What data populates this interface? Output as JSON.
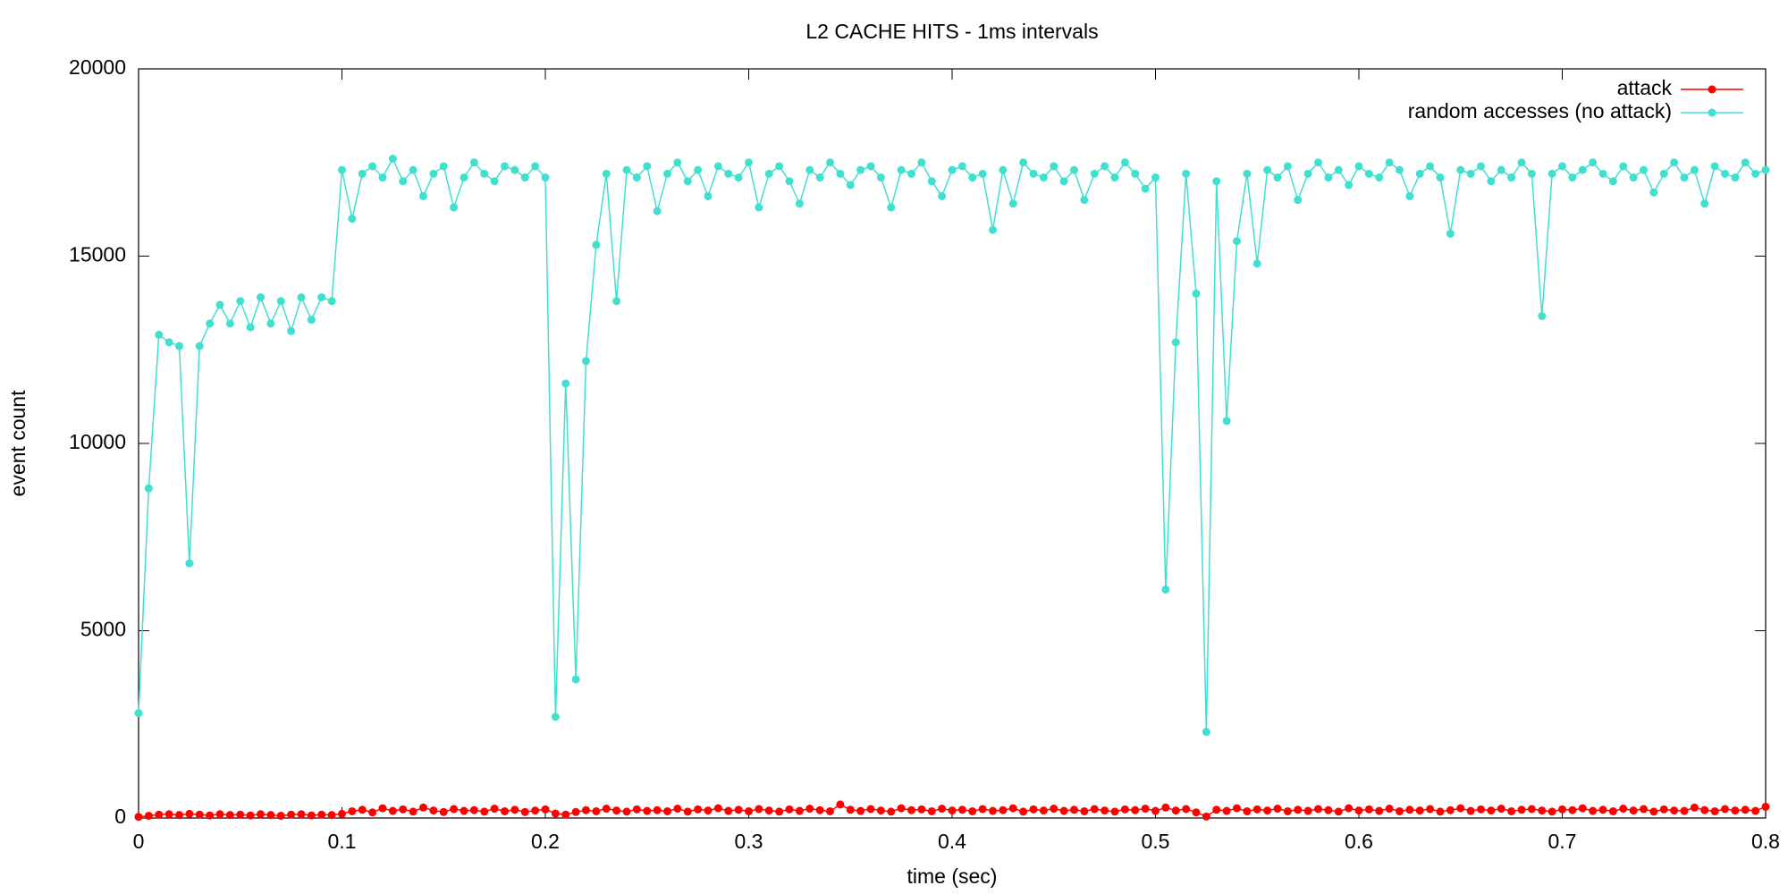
{
  "chart_data": {
    "type": "line",
    "title": "L2 CACHE HITS - 1ms intervals",
    "xlabel": "time (sec)",
    "ylabel": "event count",
    "x": [
      0,
      0.005,
      0.01,
      0.015,
      0.02,
      0.025,
      0.03,
      0.035,
      0.04,
      0.045,
      0.05,
      0.055,
      0.06,
      0.065,
      0.07,
      0.075,
      0.08,
      0.085,
      0.09,
      0.095,
      0.1,
      0.105,
      0.11,
      0.115,
      0.12,
      0.125,
      0.13,
      0.135,
      0.14,
      0.145,
      0.15,
      0.155,
      0.16,
      0.165,
      0.17,
      0.175,
      0.18,
      0.185,
      0.19,
      0.195,
      0.2,
      0.205,
      0.21,
      0.215,
      0.22,
      0.225,
      0.23,
      0.235,
      0.24,
      0.245,
      0.25,
      0.255,
      0.26,
      0.265,
      0.27,
      0.275,
      0.28,
      0.285,
      0.29,
      0.295,
      0.3,
      0.305,
      0.31,
      0.315,
      0.32,
      0.325,
      0.33,
      0.335,
      0.34,
      0.345,
      0.35,
      0.355,
      0.36,
      0.365,
      0.37,
      0.375,
      0.38,
      0.385,
      0.39,
      0.395,
      0.4,
      0.405,
      0.41,
      0.415,
      0.42,
      0.425,
      0.43,
      0.435,
      0.44,
      0.445,
      0.45,
      0.455,
      0.46,
      0.465,
      0.47,
      0.475,
      0.48,
      0.485,
      0.49,
      0.495,
      0.5,
      0.505,
      0.51,
      0.515,
      0.52,
      0.525,
      0.53,
      0.535,
      0.54,
      0.545,
      0.55,
      0.555,
      0.56,
      0.565,
      0.57,
      0.575,
      0.58,
      0.585,
      0.59,
      0.595,
      0.6,
      0.605,
      0.61,
      0.615,
      0.62,
      0.625,
      0.63,
      0.635,
      0.64,
      0.645,
      0.65,
      0.655,
      0.66,
      0.665,
      0.67,
      0.675,
      0.68,
      0.685,
      0.69,
      0.695,
      0.7,
      0.705,
      0.71,
      0.715,
      0.72,
      0.725,
      0.73,
      0.735,
      0.74,
      0.745,
      0.75,
      0.755,
      0.76,
      0.765,
      0.77,
      0.775,
      0.78,
      0.785,
      0.79,
      0.795,
      0.8
    ],
    "series": [
      {
        "name": "attack",
        "color": "#ff0000",
        "values": [
          30,
          60,
          90,
          100,
          80,
          110,
          90,
          70,
          100,
          80,
          90,
          70,
          100,
          80,
          60,
          90,
          100,
          70,
          90,
          80,
          110,
          180,
          220,
          150,
          260,
          190,
          230,
          170,
          280,
          200,
          160,
          240,
          190,
          210,
          170,
          250,
          180,
          220,
          160,
          200,
          230,
          120,
          90,
          160,
          210,
          180,
          250,
          200,
          170,
          230,
          190,
          210,
          180,
          250,
          170,
          230,
          200,
          260,
          190,
          220,
          180,
          240,
          200,
          170,
          230,
          190,
          250,
          210,
          180,
          360,
          220,
          190,
          240,
          200,
          170,
          260,
          210,
          230,
          180,
          250,
          200,
          220,
          180,
          240,
          190,
          210,
          260,
          170,
          230,
          200,
          250,
          190,
          220,
          180,
          240,
          200,
          170,
          230,
          210,
          250,
          190,
          280,
          200,
          240,
          150,
          40,
          220,
          190,
          260,
          180,
          230,
          200,
          250,
          180,
          220,
          190,
          240,
          210,
          170,
          260,
          200,
          230,
          190,
          250,
          180,
          220,
          200,
          240,
          170,
          210,
          260,
          190,
          230,
          200,
          250,
          180,
          220,
          240,
          200,
          170,
          230,
          210,
          260,
          190,
          220,
          180,
          250,
          200,
          240,
          170,
          230,
          200,
          190,
          280,
          210,
          180,
          240,
          200,
          220,
          190,
          300
        ]
      },
      {
        "name": "random accesses (no attack)",
        "color": "#40e0d0",
        "values": [
          2800,
          8800,
          12900,
          12700,
          12600,
          6800,
          12600,
          13200,
          13700,
          13200,
          13800,
          13100,
          13900,
          13200,
          13800,
          13000,
          13900,
          13300,
          13900,
          13800,
          17300,
          16000,
          17200,
          17400,
          17100,
          17600,
          17000,
          17300,
          16600,
          17200,
          17400,
          16300,
          17100,
          17500,
          17200,
          17000,
          17400,
          17300,
          17100,
          17400,
          17100,
          2700,
          11600,
          3700,
          12200,
          15300,
          17200,
          13800,
          17300,
          17100,
          17400,
          16200,
          17200,
          17500,
          17000,
          17300,
          16600,
          17400,
          17200,
          17100,
          17500,
          16300,
          17200,
          17400,
          17000,
          16400,
          17300,
          17100,
          17500,
          17200,
          16900,
          17300,
          17400,
          17100,
          16300,
          17300,
          17200,
          17500,
          17000,
          16600,
          17300,
          17400,
          17100,
          17200,
          15700,
          17300,
          16400,
          17500,
          17200,
          17100,
          17400,
          17000,
          17300,
          16500,
          17200,
          17400,
          17100,
          17500,
          17200,
          16800,
          17100,
          6100,
          12700,
          17200,
          14000,
          2300,
          17000,
          10600,
          15400,
          17200,
          14800,
          17300,
          17100,
          17400,
          16500,
          17200,
          17500,
          17100,
          17300,
          16900,
          17400,
          17200,
          17100,
          17500,
          17300,
          16600,
          17200,
          17400,
          17100,
          15600,
          17300,
          17200,
          17400,
          17000,
          17300,
          17100,
          17500,
          17200,
          13400,
          17200,
          17400,
          17100,
          17300,
          17500,
          17200,
          17000,
          17400,
          17100,
          17300,
          16700,
          17200,
          17500,
          17100,
          17300,
          16400,
          17400,
          17200,
          17100,
          17500,
          17200,
          17300
        ]
      }
    ],
    "xlim": [
      0,
      0.8
    ],
    "xticks": [
      0,
      0.1,
      0.2,
      0.3,
      0.4,
      0.5,
      0.6,
      0.7,
      0.8
    ],
    "ylim": [
      0,
      20000
    ],
    "yticks": [
      0,
      5000,
      10000,
      15000,
      20000
    ],
    "legend": "top-right"
  }
}
